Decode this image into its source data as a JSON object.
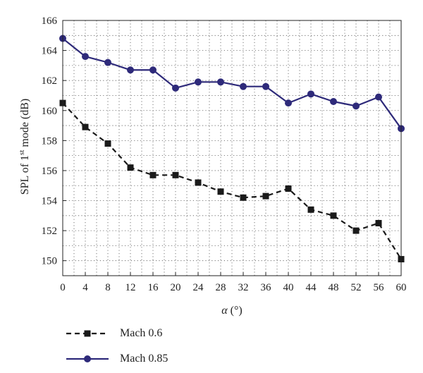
{
  "chart_data": {
    "type": "line",
    "xlabel_symbol": "α",
    "xlabel_unit": "(°)",
    "ylabel_prefix": "SPL of 1",
    "ylabel_sup": "st",
    "ylabel_suffix": " mode (dB)",
    "x": [
      0,
      4,
      8,
      12,
      16,
      20,
      24,
      28,
      32,
      36,
      40,
      44,
      48,
      52,
      56,
      60
    ],
    "xlim": [
      0,
      60
    ],
    "ylim": [
      149,
      166
    ],
    "xticks": [
      "0",
      "4",
      "8",
      "12",
      "16",
      "20",
      "24",
      "28",
      "32",
      "36",
      "40",
      "44",
      "48",
      "52",
      "56",
      "60"
    ],
    "yticks": [
      "150",
      "152",
      "154",
      "156",
      "158",
      "160",
      "162",
      "164",
      "166"
    ],
    "grid": true,
    "legend_position": "bottom-left",
    "series": [
      {
        "name": "Mach 0.6",
        "marker": "square",
        "linestyle": "dashed",
        "color": "#1a1a1a",
        "values": [
          160.5,
          158.9,
          157.8,
          156.2,
          155.7,
          155.7,
          155.2,
          154.6,
          154.2,
          154.3,
          154.8,
          153.4,
          153.0,
          152.0,
          152.5,
          150.1
        ]
      },
      {
        "name": "Mach 0.85",
        "marker": "circle",
        "linestyle": "solid",
        "color": "#2e2a7a",
        "values": [
          164.8,
          163.6,
          163.2,
          162.7,
          162.7,
          161.5,
          161.9,
          161.9,
          161.6,
          161.6,
          160.5,
          161.1,
          160.6,
          160.3,
          160.9,
          158.8
        ]
      }
    ]
  }
}
